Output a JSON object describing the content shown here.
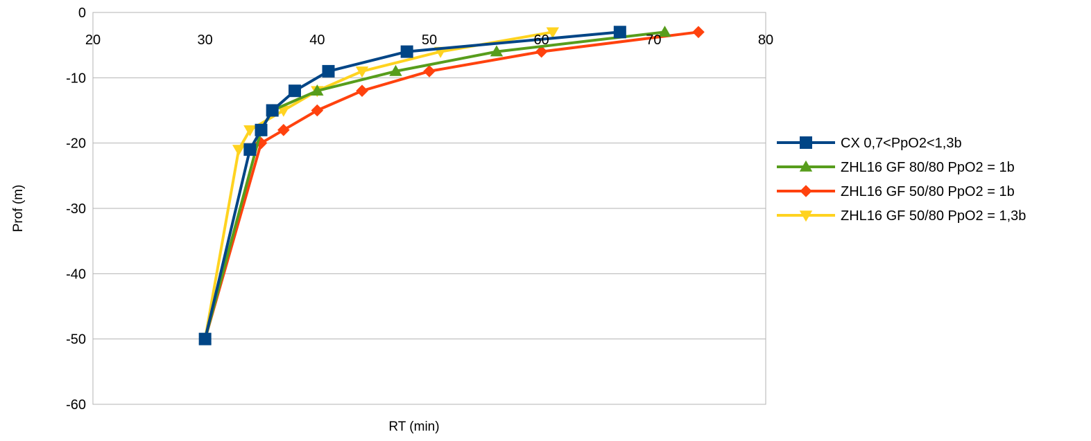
{
  "chart_data": {
    "type": "line",
    "xlabel": "RT (min)",
    "ylabel": "Prof (m)",
    "xlim": [
      20,
      80
    ],
    "ylim": [
      -60,
      0
    ],
    "x_ticks": [
      20,
      30,
      40,
      50,
      60,
      70,
      80
    ],
    "y_ticks": [
      0,
      -10,
      -20,
      -30,
      -40,
      -50,
      -60
    ],
    "x_tick_labels": [
      "20",
      "30",
      "40",
      "50",
      "60",
      "70",
      "80"
    ],
    "y_tick_labels": [
      "0",
      "-10",
      "-20",
      "-30",
      "-40",
      "-50",
      "-60"
    ],
    "grid": "horizontal",
    "legend_position": "right",
    "series": [
      {
        "name": "CX 0,7<PpO2<1,3b",
        "color": "#004586",
        "marker": "square",
        "points": [
          [
            30,
            -50
          ],
          [
            34,
            -21
          ],
          [
            35,
            -18
          ],
          [
            36,
            -15
          ],
          [
            38,
            -12
          ],
          [
            41,
            -9
          ],
          [
            48,
            -6
          ],
          [
            67,
            -3
          ]
        ]
      },
      {
        "name": "ZHL16 GF 80/80 PpO2 = 1b",
        "color": "#579d1c",
        "marker": "triangle-up",
        "points": [
          [
            30,
            -50
          ],
          [
            35,
            -18
          ],
          [
            36,
            -15
          ],
          [
            40,
            -12
          ],
          [
            47,
            -9
          ],
          [
            56,
            -6
          ],
          [
            71,
            -3
          ]
        ]
      },
      {
        "name": "ZHL16 GF 50/80 PpO2 = 1b",
        "color": "#ff420e",
        "marker": "diamond",
        "points": [
          [
            30,
            -50
          ],
          [
            35,
            -20
          ],
          [
            37,
            -18
          ],
          [
            40,
            -15
          ],
          [
            44,
            -12
          ],
          [
            50,
            -9
          ],
          [
            60,
            -6
          ],
          [
            74,
            -3
          ]
        ]
      },
      {
        "name": "ZHL16 GF 50/80 PpO2 = 1,3b",
        "color": "#ffd320",
        "marker": "triangle-down",
        "points": [
          [
            30,
            -50
          ],
          [
            33,
            -21
          ],
          [
            34,
            -18
          ],
          [
            37,
            -15
          ],
          [
            40,
            -12
          ],
          [
            44,
            -9
          ],
          [
            51,
            -6
          ],
          [
            61,
            -3
          ]
        ]
      }
    ]
  }
}
